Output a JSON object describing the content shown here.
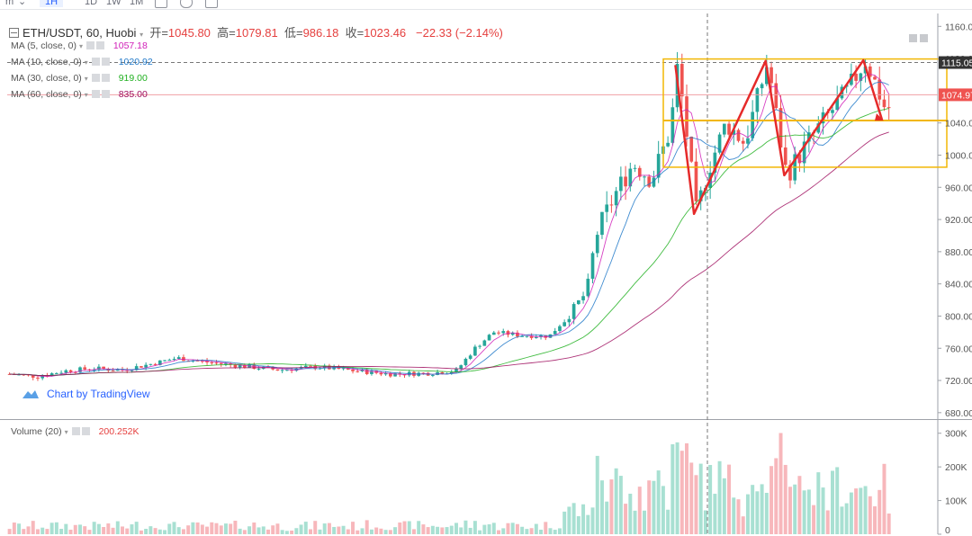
{
  "toolbar": {
    "items": [
      {
        "label": "m",
        "active": false
      },
      {
        "label": "1H",
        "active": true
      },
      {
        "label": "1D",
        "active": false
      },
      {
        "label": "1W",
        "active": false
      },
      {
        "label": "1M",
        "active": false
      }
    ]
  },
  "header": {
    "symbol": "ETH/USDT, 60, Huobi",
    "open_label": "开=",
    "open": "1045.80",
    "high_label": "高=",
    "high": "1079.81",
    "low_label": "低=",
    "low": "986.18",
    "close_label": "收=",
    "close": "1023.46",
    "change": "−22.33 (−2.14%)"
  },
  "indicators": [
    {
      "label": "MA (5, close, 0)",
      "value": "1057.18",
      "color": "#d020b8"
    },
    {
      "label": "MA (10, close, 0)",
      "value": "1020.92",
      "color": "#1f78c8"
    },
    {
      "label": "MA (30, close, 0)",
      "value": "919.00",
      "color": "#20b020"
    },
    {
      "label": "MA (60, close, 0)",
      "value": "835.00",
      "color": "#a01060"
    }
  ],
  "volume_legend": {
    "label": "Volume (20)",
    "value": "200.252K",
    "color": "#e5403f"
  },
  "branding": {
    "text": "Chart by TradingView"
  },
  "colors": {
    "up": "#26a69a",
    "down": "#ef5350",
    "vol_up": "#a8e0d2",
    "vol_down": "#f7b7bb",
    "annotation": "#e52a2a",
    "box": "#f2b705",
    "accent": "#2962ff"
  },
  "chart_data": {
    "type": "candlestick",
    "symbol": "ETH/USDT",
    "interval": "60",
    "exchange": "Huobi",
    "price_axis": {
      "ticks": [
        "1160.00",
        "1120.00",
        "1040.00",
        "1000.00",
        "960.00",
        "920.00",
        "880.00",
        "840.00",
        "800.00",
        "760.00",
        "720.00",
        "680.00"
      ],
      "range": [
        672,
        1176
      ]
    },
    "price_labels": {
      "crosshair": "1115.05",
      "last": "1074.97"
    },
    "volume_axis": {
      "ticks": [
        "300K",
        "200K",
        "100K",
        "0"
      ],
      "range": [
        0,
        310000
      ]
    },
    "key_levels": {
      "box_top": 1115,
      "box_middle": 1043,
      "box_bottom": 985
    },
    "annotation_path": [
      [
        0.718,
        1112
      ],
      [
        0.738,
        927
      ],
      [
        0.815,
        1117
      ],
      [
        0.835,
        975
      ],
      [
        0.92,
        1118
      ],
      [
        0.94,
        1044
      ]
    ],
    "ohlc_sketch": [
      [
        0.0,
        728
      ],
      [
        0.03,
        725
      ],
      [
        0.06,
        732
      ],
      [
        0.09,
        735
      ],
      [
        0.12,
        733
      ],
      [
        0.15,
        740
      ],
      [
        0.18,
        748
      ],
      [
        0.21,
        743
      ],
      [
        0.25,
        738
      ],
      [
        0.29,
        733
      ],
      [
        0.33,
        737
      ],
      [
        0.37,
        732
      ],
      [
        0.41,
        728
      ],
      [
        0.45,
        729
      ],
      [
        0.48,
        732
      ],
      [
        0.5,
        760
      ],
      [
        0.52,
        780
      ],
      [
        0.55,
        776
      ],
      [
        0.58,
        775
      ],
      [
        0.6,
        800
      ],
      [
        0.62,
        830
      ],
      [
        0.63,
        900
      ],
      [
        0.65,
        950
      ],
      [
        0.67,
        990
      ],
      [
        0.69,
        970
      ],
      [
        0.71,
        1030
      ],
      [
        0.718,
        1112
      ],
      [
        0.73,
        1005
      ],
      [
        0.738,
        927
      ],
      [
        0.75,
        980
      ],
      [
        0.77,
        1040
      ],
      [
        0.79,
        1015
      ],
      [
        0.815,
        1117
      ],
      [
        0.825,
        1040
      ],
      [
        0.835,
        975
      ],
      [
        0.86,
        1020
      ],
      [
        0.88,
        1050
      ],
      [
        0.9,
        1080
      ],
      [
        0.92,
        1118
      ],
      [
        0.93,
        1090
      ],
      [
        0.94,
        1060
      ]
    ]
  }
}
